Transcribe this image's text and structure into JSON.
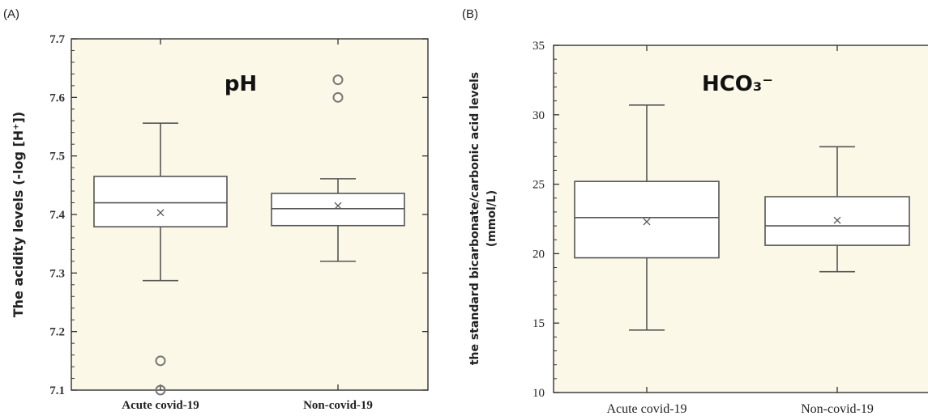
{
  "panels": [
    {
      "letter": "(A)",
      "title": "pH",
      "ylabel": "The acidity levels (-log [H⁺])",
      "categories": [
        "Acute covid-19",
        "Non-covid-19"
      ]
    },
    {
      "letter": "(B)",
      "title": "HCO₃⁻",
      "ylabel_line1": "the standard bicarbonate/carbonic acid levels",
      "ylabel_line2": "(mmol/L)",
      "categories": [
        "Acute covid-19",
        "Non-covid-19"
      ]
    }
  ],
  "colors": {
    "plot_background": "#fbf8e7",
    "box_fill": "#ffffff",
    "box_stroke": "#555555",
    "axis": "#333333"
  },
  "chart_data": [
    {
      "type": "box",
      "title": "pH",
      "ylabel": "The acidity levels (-log [H⁺])",
      "ylim": [
        7.1,
        7.7
      ],
      "yticks": [
        "7.1",
        "7.2",
        "7.3",
        "7.4",
        "7.5",
        "7.6",
        "7.7"
      ],
      "categories": [
        "Acute covid-19",
        "Non-covid-19"
      ],
      "boxes": [
        {
          "category": "Acute covid-19",
          "whisker_low": 7.287,
          "q1": 7.379,
          "median": 7.42,
          "q3": 7.465,
          "whisker_high": 7.556,
          "mean": 7.403,
          "outliers": [
            7.15,
            7.1
          ]
        },
        {
          "category": "Non-covid-19",
          "whisker_low": 7.32,
          "q1": 7.381,
          "median": 7.41,
          "q3": 7.436,
          "whisker_high": 7.461,
          "mean": 7.415,
          "outliers": [
            7.63,
            7.6
          ]
        }
      ]
    },
    {
      "type": "box",
      "title": "HCO₃⁻",
      "ylabel": "the standard bicarbonate/carbonic acid levels (mmol/L)",
      "ylim": [
        10,
        35
      ],
      "yticks": [
        "10",
        "15",
        "20",
        "25",
        "30",
        "35"
      ],
      "categories": [
        "Acute covid-19",
        "Non-covid-19"
      ],
      "boxes": [
        {
          "category": "Acute covid-19",
          "whisker_low": 14.5,
          "q1": 19.7,
          "median": 22.6,
          "q3": 25.2,
          "whisker_high": 30.7,
          "mean": 22.3,
          "outliers": []
        },
        {
          "category": "Non-covid-19",
          "whisker_low": 18.7,
          "q1": 20.6,
          "median": 22.0,
          "q3": 24.1,
          "whisker_high": 27.7,
          "mean": 22.4,
          "outliers": []
        }
      ]
    }
  ]
}
